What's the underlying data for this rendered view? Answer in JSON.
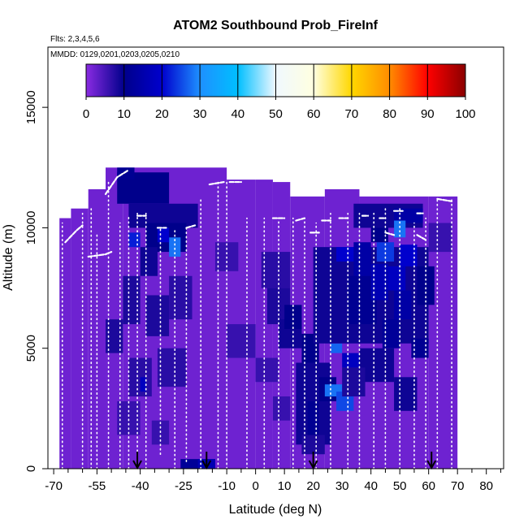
{
  "chart_data": {
    "type": "heatmap",
    "title": "ATOM2 Southbound Prob_FireInf",
    "subtitle_flights": "Flts: 2,3,4,5,6",
    "subtitle_dates": "MMDD: 0129,0201,0203,0205,0210",
    "xlabel": "Latitude (deg N)",
    "ylabel": "Altitude (m)",
    "xlim": [
      -72,
      86
    ],
    "ylim": [
      0,
      17500
    ],
    "x_ticks": [
      -70,
      -55,
      -40,
      -25,
      -10,
      0,
      10,
      20,
      30,
      40,
      50,
      60,
      70,
      80
    ],
    "x_tick_labels": [
      "-70",
      "-55",
      "-40",
      "-25",
      "-10",
      "0",
      "10",
      "20",
      "30",
      "40",
      "50",
      "60",
      "70",
      "80"
    ],
    "x_minor_ticks": [
      -65,
      -60,
      -50,
      -45,
      -35,
      -30,
      -20,
      -15,
      -5,
      5,
      15,
      25,
      35,
      45,
      55,
      65,
      75,
      85
    ],
    "y_ticks": [
      0,
      5000,
      10000,
      15000
    ],
    "y_tick_labels": [
      "0",
      "5000",
      "10000",
      "15000"
    ],
    "colorbar": {
      "min": 0,
      "max": 100,
      "ticks": [
        0,
        10,
        20,
        30,
        40,
        50,
        60,
        70,
        80,
        90,
        100
      ],
      "tick_labels": [
        "0",
        "10",
        "20",
        "30",
        "40",
        "50",
        "60",
        "70",
        "80",
        "90",
        "100"
      ],
      "colors": [
        "#8a2be2",
        "#00008b",
        "#0000cd",
        "#1e90ff",
        "#00bfff",
        "#f0f8ff",
        "#ffffe0",
        "#ffd700",
        "#ff8c00",
        "#ff0000",
        "#8b0000"
      ]
    },
    "background_value": 2,
    "profile_columns": [
      {
        "xmin": -68,
        "xmax": -64,
        "ymin": 0,
        "ymax": 10400
      },
      {
        "xmin": -64,
        "xmax": -58,
        "ymin": 0,
        "ymax": 10800
      },
      {
        "xmin": -58,
        "xmax": -52,
        "ymin": 0,
        "ymax": 11600
      },
      {
        "xmin": -52,
        "xmax": -46,
        "ymin": 0,
        "ymax": 12500
      },
      {
        "xmin": -46,
        "xmax": -10,
        "ymin": 0,
        "ymax": 12500
      },
      {
        "xmin": -10,
        "xmax": 0,
        "ymin": 0,
        "ymax": 12000
      },
      {
        "xmin": 0,
        "xmax": 6,
        "ymin": 0,
        "ymax": 12000
      },
      {
        "xmin": 6,
        "xmax": 12,
        "ymin": 0,
        "ymax": 11900
      },
      {
        "xmin": 12,
        "xmax": 24,
        "ymin": 0,
        "ymax": 11300
      },
      {
        "xmin": 24,
        "xmax": 36,
        "ymin": 0,
        "ymax": 11600
      },
      {
        "xmin": 36,
        "xmax": 60,
        "ymin": 0,
        "ymax": 11300
      },
      {
        "xmin": 60,
        "xmax": 70,
        "ymin": 0,
        "ymax": 11300
      }
    ],
    "cells": [
      {
        "x0": -48,
        "x1": -30,
        "y0": 11000,
        "y1": 12300,
        "v": 10
      },
      {
        "x0": -48,
        "x1": -42,
        "y0": 12000,
        "y1": 12500,
        "v": 11
      },
      {
        "x0": -44,
        "x1": -20,
        "y0": 10000,
        "y1": 11000,
        "v": 9
      },
      {
        "x0": -38,
        "x1": -24,
        "y0": 9000,
        "y1": 10200,
        "v": 10
      },
      {
        "x0": -40,
        "x1": -34,
        "y0": 8000,
        "y1": 9200,
        "v": 9
      },
      {
        "x0": -30,
        "x1": -26,
        "y0": 8800,
        "y1": 9600,
        "v": 28
      },
      {
        "x0": -34,
        "x1": -30,
        "y0": 9400,
        "y1": 10000,
        "v": 20
      },
      {
        "x0": -46,
        "x1": -40,
        "y0": 6000,
        "y1": 8000,
        "v": 8
      },
      {
        "x0": -52,
        "x1": -46,
        "y0": 4800,
        "y1": 6200,
        "v": 8
      },
      {
        "x0": -38,
        "x1": -30,
        "y0": 5500,
        "y1": 7200,
        "v": 8
      },
      {
        "x0": -30,
        "x1": -22,
        "y0": 6200,
        "y1": 8000,
        "v": 7
      },
      {
        "x0": -44,
        "x1": -36,
        "y0": 3000,
        "y1": 4600,
        "v": 7
      },
      {
        "x0": -34,
        "x1": -24,
        "y0": 3400,
        "y1": 5000,
        "v": 7
      },
      {
        "x0": -48,
        "x1": -40,
        "y0": 1400,
        "y1": 2800,
        "v": 6
      },
      {
        "x0": -36,
        "x1": -30,
        "y0": 1000,
        "y1": 2000,
        "v": 6
      },
      {
        "x0": -26,
        "x1": -14,
        "y0": 0,
        "y1": 400,
        "v": 12
      },
      {
        "x0": -20,
        "x1": -14,
        "y0": 0,
        "y1": 400,
        "v": 16
      },
      {
        "x0": -44,
        "x1": -40,
        "y0": 9200,
        "y1": 9800,
        "v": 22
      },
      {
        "x0": -40,
        "x1": -38,
        "y0": 3200,
        "y1": 3800,
        "v": 18
      },
      {
        "x0": 2,
        "x1": 12,
        "y0": 7500,
        "y1": 9000,
        "v": 7
      },
      {
        "x0": 4,
        "x1": 12,
        "y0": 6000,
        "y1": 7500,
        "v": 8
      },
      {
        "x0": 8,
        "x1": 16,
        "y0": 5000,
        "y1": 6200,
        "v": 9
      },
      {
        "x0": 10,
        "x1": 16,
        "y0": 5800,
        "y1": 6800,
        "v": 10
      },
      {
        "x0": 16,
        "x1": 22,
        "y0": 4200,
        "y1": 5600,
        "v": 10
      },
      {
        "x0": 14,
        "x1": 26,
        "y0": 1000,
        "y1": 4400,
        "v": 9
      },
      {
        "x0": 16,
        "x1": 24,
        "y0": 600,
        "y1": 1400,
        "v": 8
      },
      {
        "x0": 18,
        "x1": 22,
        "y0": 1400,
        "y1": 2800,
        "v": 11
      },
      {
        "x0": 22,
        "x1": 28,
        "y0": 2800,
        "y1": 3800,
        "v": 10
      },
      {
        "x0": 24,
        "x1": 30,
        "y0": 3000,
        "y1": 3500,
        "v": 28
      },
      {
        "x0": 28,
        "x1": 34,
        "y0": 2400,
        "y1": 3200,
        "v": 25
      },
      {
        "x0": 26,
        "x1": 30,
        "y0": 4800,
        "y1": 5200,
        "v": 27
      },
      {
        "x0": 30,
        "x1": 36,
        "y0": 4200,
        "y1": 4800,
        "v": 18
      },
      {
        "x0": 20,
        "x1": 60,
        "y0": 5200,
        "y1": 9200,
        "v": 9
      },
      {
        "x0": 32,
        "x1": 42,
        "y0": 6000,
        "y1": 8000,
        "v": 11
      },
      {
        "x0": 34,
        "x1": 40,
        "y0": 8000,
        "y1": 9400,
        "v": 14
      },
      {
        "x0": 40,
        "x1": 46,
        "y0": 7000,
        "y1": 8500,
        "v": 16
      },
      {
        "x0": 42,
        "x1": 48,
        "y0": 8600,
        "y1": 9400,
        "v": 24
      },
      {
        "x0": 40,
        "x1": 46,
        "y0": 9400,
        "y1": 10100,
        "v": 10
      },
      {
        "x0": 46,
        "x1": 52,
        "y0": 7400,
        "y1": 8400,
        "v": 18
      },
      {
        "x0": 50,
        "x1": 56,
        "y0": 8400,
        "y1": 9300,
        "v": 20
      },
      {
        "x0": 48,
        "x1": 54,
        "y0": 6200,
        "y1": 7400,
        "v": 14
      },
      {
        "x0": 44,
        "x1": 50,
        "y0": 5000,
        "y1": 6200,
        "v": 12
      },
      {
        "x0": 34,
        "x1": 58,
        "y0": 10000,
        "y1": 11000,
        "v": 9
      },
      {
        "x0": 48,
        "x1": 58,
        "y0": 10200,
        "y1": 10800,
        "v": 14
      },
      {
        "x0": 48,
        "x1": 52,
        "y0": 9600,
        "y1": 10300,
        "v": 28
      },
      {
        "x0": 36,
        "x1": 48,
        "y0": 3600,
        "y1": 5000,
        "v": 9
      },
      {
        "x0": 30,
        "x1": 38,
        "y0": 3000,
        "y1": 4200,
        "v": 8
      },
      {
        "x0": 48,
        "x1": 56,
        "y0": 2400,
        "y1": 3800,
        "v": 9
      },
      {
        "x0": 54,
        "x1": 60,
        "y0": 4600,
        "y1": 5400,
        "v": 11
      },
      {
        "x0": 56,
        "x1": 62,
        "y0": 6800,
        "y1": 8400,
        "v": 10
      },
      {
        "x0": 60,
        "x1": 68,
        "y0": 9000,
        "y1": 10200,
        "v": 6
      },
      {
        "x0": 28,
        "x1": 34,
        "y0": 8600,
        "y1": 9200,
        "v": 20
      },
      {
        "x0": 6,
        "x1": 12,
        "y0": 2000,
        "y1": 3000,
        "v": 6
      },
      {
        "x0": 0,
        "x1": 8,
        "y0": 3600,
        "y1": 4600,
        "v": 6
      },
      {
        "x0": -10,
        "x1": 0,
        "y0": 4600,
        "y1": 6000,
        "v": 6
      },
      {
        "x0": -14,
        "x1": -6,
        "y0": 8200,
        "y1": 9400,
        "v": 6
      }
    ],
    "flight_tracks": [
      {
        "x": -67,
        "ymin": 0,
        "ymax": 10200
      },
      {
        "x": -60,
        "ymin": 0,
        "ymax": 10600
      },
      {
        "x": -57,
        "ymin": 0,
        "ymax": 10800
      },
      {
        "x": -55,
        "ymin": 0,
        "ymax": 9800
      },
      {
        "x": -51,
        "ymin": 0,
        "ymax": 12000
      },
      {
        "x": -47,
        "ymin": 0,
        "ymax": 10200
      },
      {
        "x": -44,
        "ymin": 0,
        "ymax": 10500
      },
      {
        "x": -41,
        "ymin": 0,
        "ymax": 10600
      },
      {
        "x": -38,
        "ymin": 0,
        "ymax": 10600
      },
      {
        "x": -33,
        "ymin": 600,
        "ymax": 10000
      },
      {
        "x": -28,
        "ymin": 0,
        "ymax": 10000
      },
      {
        "x": -24,
        "ymin": 300,
        "ymax": 10000
      },
      {
        "x": -19,
        "ymin": 0,
        "ymax": 11200
      },
      {
        "x": -13,
        "ymin": 0,
        "ymax": 11900
      },
      {
        "x": -10,
        "ymin": 0,
        "ymax": 11900
      },
      {
        "x": -3,
        "ymin": 0,
        "ymax": 10400
      },
      {
        "x": 3,
        "ymin": 0,
        "ymax": 10400
      },
      {
        "x": 8,
        "ymin": 0,
        "ymax": 10300
      },
      {
        "x": 13,
        "ymin": 0,
        "ymax": 10400
      },
      {
        "x": 17,
        "ymin": 0,
        "ymax": 10400
      },
      {
        "x": 21,
        "ymin": 0,
        "ymax": 10200
      },
      {
        "x": 26,
        "ymin": 0,
        "ymax": 10600
      },
      {
        "x": 32,
        "ymin": 0,
        "ymax": 10600
      },
      {
        "x": 36,
        "ymin": 0,
        "ymax": 10600
      },
      {
        "x": 41,
        "ymin": 0,
        "ymax": 10600
      },
      {
        "x": 45,
        "ymin": 0,
        "ymax": 10800
      },
      {
        "x": 50,
        "ymin": 0,
        "ymax": 10800
      },
      {
        "x": 55,
        "ymin": 0,
        "ymax": 10200
      },
      {
        "x": 59,
        "ymin": 0,
        "ymax": 10400
      },
      {
        "x": 63,
        "ymin": 0,
        "ymax": 11200
      },
      {
        "x": 68,
        "ymin": 0,
        "ymax": 11200
      }
    ],
    "cruise_segments": [
      {
        "x": [
          -66,
          -62,
          -60
        ],
        "y": [
          9400,
          9900,
          10100
        ]
      },
      {
        "x": [
          -58,
          -52,
          -50
        ],
        "y": [
          8800,
          8900,
          9000
        ]
      },
      {
        "x": [
          -52,
          -48,
          -44
        ],
        "y": [
          11400,
          12100,
          12400
        ]
      },
      {
        "x": [
          -41,
          -38
        ],
        "y": [
          10500,
          10500
        ]
      },
      {
        "x": [
          -34,
          -31
        ],
        "y": [
          10000,
          10000
        ]
      },
      {
        "x": [
          -24,
          -21
        ],
        "y": [
          10000,
          10100
        ]
      },
      {
        "x": [
          -16,
          -11
        ],
        "y": [
          11800,
          11900
        ]
      },
      {
        "x": [
          -9,
          -5
        ],
        "y": [
          11900,
          11900
        ]
      },
      {
        "x": [
          6,
          10
        ],
        "y": [
          10400,
          10400
        ]
      },
      {
        "x": [
          14,
          17
        ],
        "y": [
          10300,
          10400
        ]
      },
      {
        "x": [
          19,
          22
        ],
        "y": [
          9800,
          9800
        ]
      },
      {
        "x": [
          23,
          26
        ],
        "y": [
          10300,
          10300
        ]
      },
      {
        "x": [
          29,
          32
        ],
        "y": [
          10400,
          10400
        ]
      },
      {
        "x": [
          37,
          39
        ],
        "y": [
          10500,
          10500
        ]
      },
      {
        "x": [
          43,
          45
        ],
        "y": [
          10400,
          10400
        ]
      },
      {
        "x": [
          48,
          51
        ],
        "y": [
          10700,
          10700
        ]
      },
      {
        "x": [
          56,
          58
        ],
        "y": [
          10600,
          10600
        ]
      },
      {
        "x": [
          45,
          48
        ],
        "y": [
          9800,
          9700
        ]
      },
      {
        "x": [
          56,
          59
        ],
        "y": [
          9700,
          9500
        ]
      },
      {
        "x": [
          63,
          68
        ],
        "y": [
          11200,
          11100
        ]
      }
    ],
    "arrow_markers": [
      -41,
      -17,
      20,
      61
    ]
  }
}
